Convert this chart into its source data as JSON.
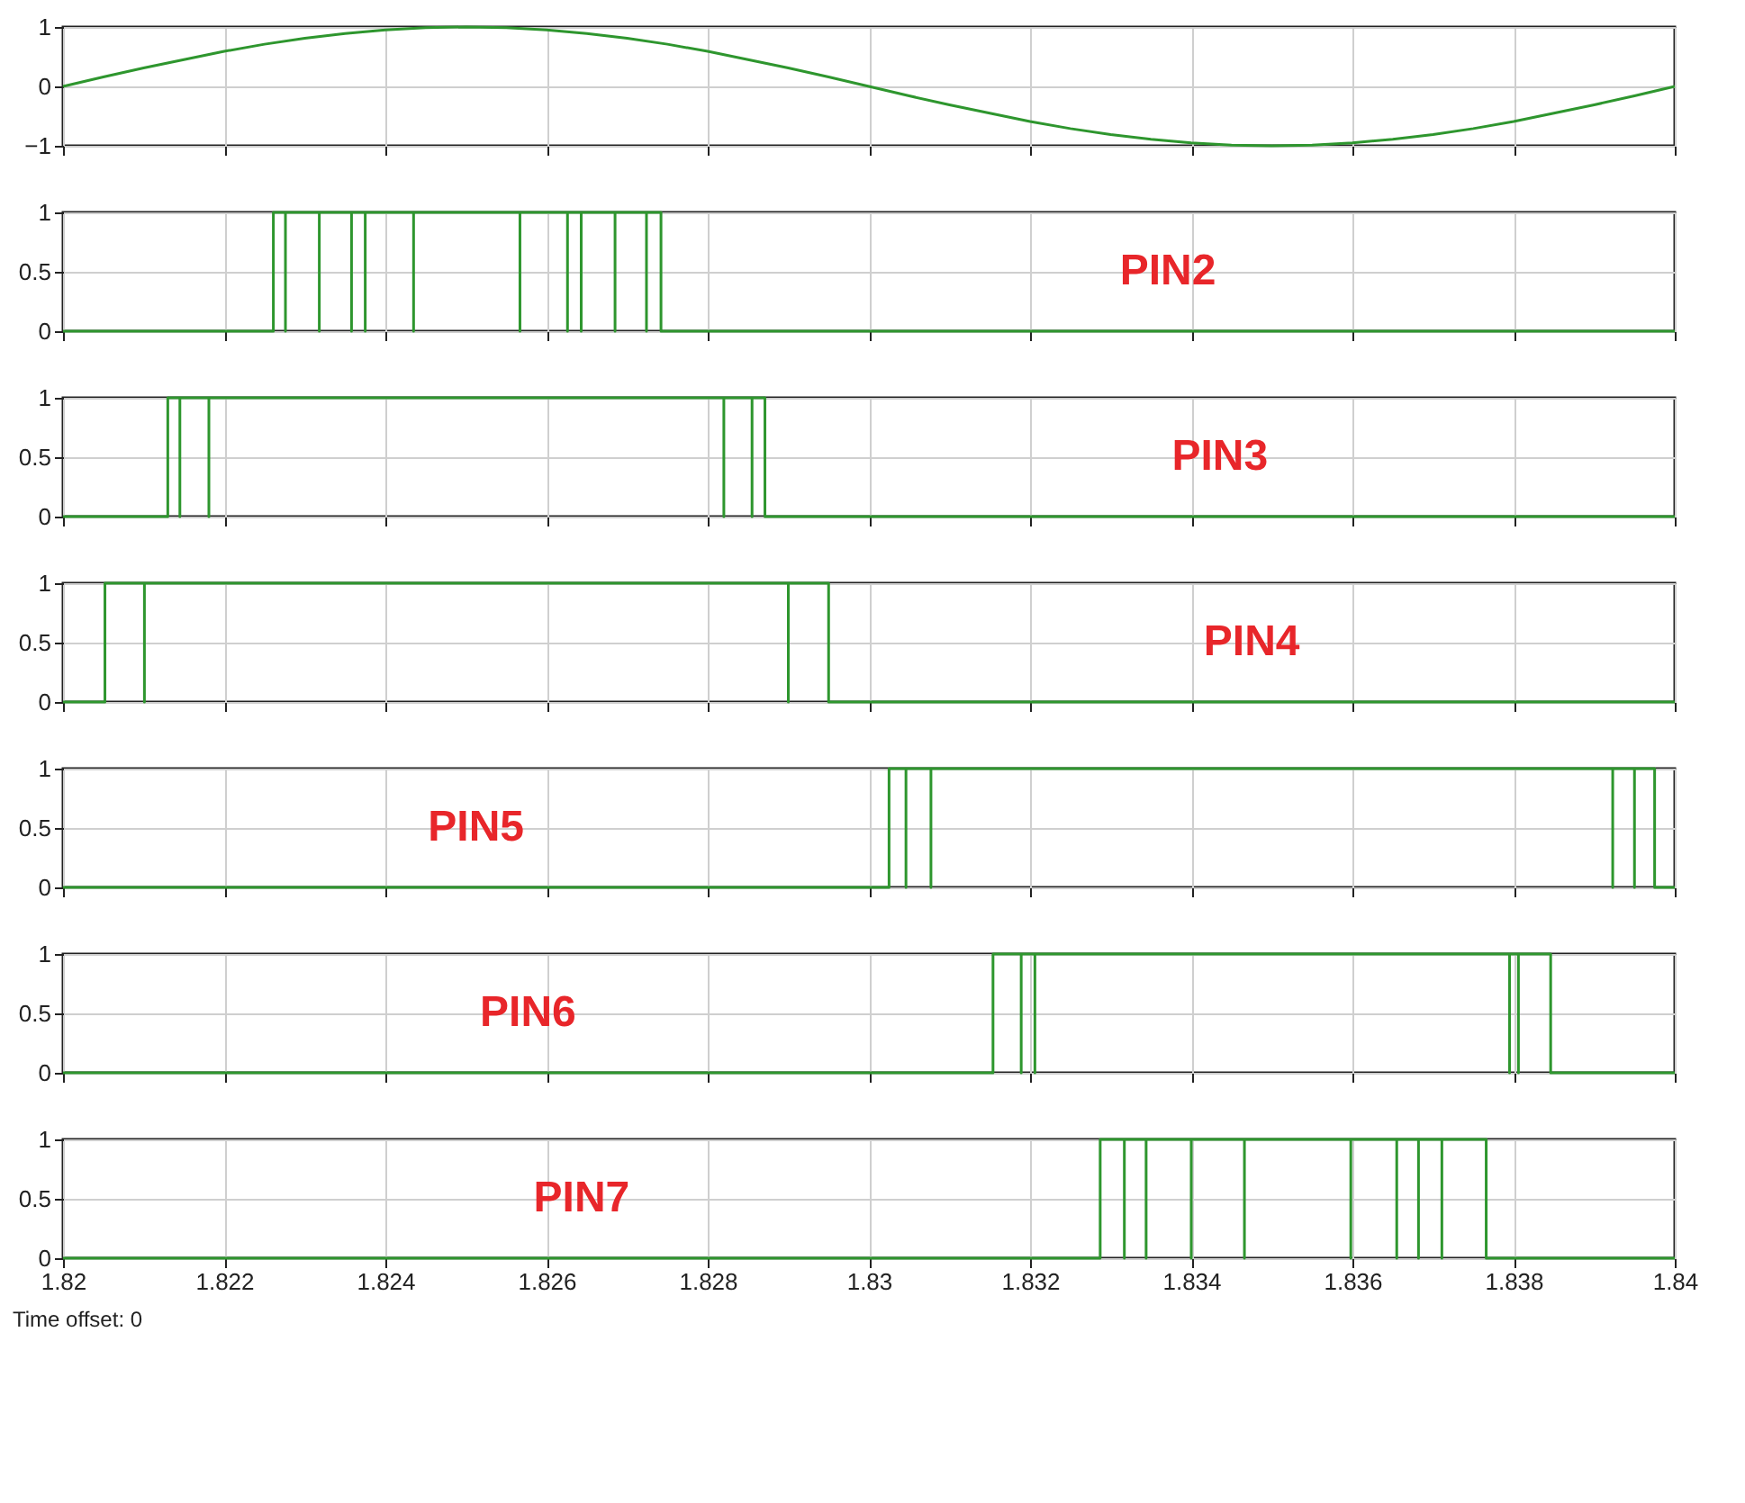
{
  "chart_data": [
    {
      "type": "line",
      "x": [
        1.82,
        1.8205,
        1.821,
        1.8215,
        1.822,
        1.8225,
        1.823,
        1.8235,
        1.824,
        1.8245,
        1.825,
        1.8255,
        1.826,
        1.8265,
        1.827,
        1.8275,
        1.828,
        1.8285,
        1.829,
        1.8295,
        1.83,
        1.8305,
        1.831,
        1.8315,
        1.832,
        1.8325,
        1.833,
        1.8335,
        1.834,
        1.8345,
        1.835,
        1.8355,
        1.836,
        1.8365,
        1.837,
        1.8375,
        1.838,
        1.8385,
        1.839,
        1.8395,
        1.84
      ],
      "series": [
        {
          "color": "#2e962e",
          "values": [
            0,
            0.16,
            0.31,
            0.45,
            0.59,
            0.71,
            0.81,
            0.89,
            0.95,
            0.99,
            1,
            0.99,
            0.95,
            0.89,
            0.81,
            0.71,
            0.59,
            0.45,
            0.31,
            0.16,
            0,
            -0.16,
            -0.31,
            -0.45,
            -0.59,
            -0.71,
            -0.81,
            -0.89,
            -0.95,
            -0.99,
            -1,
            -0.99,
            -0.95,
            -0.89,
            -0.81,
            -0.71,
            -0.59,
            -0.45,
            -0.31,
            -0.16,
            0
          ]
        }
      ],
      "xlim": [
        1.82,
        1.84
      ],
      "xticks": [
        1.82,
        1.822,
        1.824,
        1.826,
        1.828,
        1.83,
        1.832,
        1.834,
        1.836,
        1.838,
        1.84
      ],
      "ylim": [
        -1,
        1
      ],
      "yticks": [
        -1,
        0,
        1
      ],
      "grid": true,
      "tick_labels": "y"
    },
    {
      "type": "line",
      "x": [
        1.82,
        1.82261,
        1.82261,
        1.82276,
        1.82276,
        1.82276,
        1.82318,
        1.82318,
        1.82318,
        1.82358,
        1.82358,
        1.82358,
        1.82375,
        1.82375,
        1.82375,
        1.82435,
        1.82435,
        1.82435,
        1.82567,
        1.82567,
        1.82567,
        1.82626,
        1.82626,
        1.82626,
        1.82643,
        1.82643,
        1.82643,
        1.82685,
        1.82685,
        1.82685,
        1.82724,
        1.82724,
        1.82724,
        1.82742,
        1.82742,
        1.84
      ],
      "series": [
        {
          "color": "#2e962e",
          "values": [
            0,
            0,
            1,
            1,
            0,
            1,
            1,
            0,
            1,
            1,
            0,
            1,
            1,
            0,
            1,
            1,
            0,
            1,
            1,
            0,
            1,
            1,
            0,
            1,
            1,
            0,
            1,
            1,
            0,
            1,
            1,
            0,
            1,
            1,
            0,
            0
          ]
        }
      ],
      "annotations": [
        "PIN2"
      ],
      "xlim": [
        1.82,
        1.84
      ],
      "xticks": [
        1.82,
        1.822,
        1.824,
        1.826,
        1.828,
        1.83,
        1.832,
        1.834,
        1.836,
        1.838,
        1.84
      ],
      "ylim": [
        0,
        1
      ],
      "yticks": [
        0,
        0.5,
        1
      ],
      "grid": true,
      "tick_labels": "y"
    },
    {
      "type": "line",
      "x": [
        1.82,
        1.8213,
        1.8213,
        1.82145,
        1.82145,
        1.82145,
        1.82181,
        1.82181,
        1.82181,
        1.8282,
        1.8282,
        1.8282,
        1.82855,
        1.82855,
        1.82855,
        1.82871,
        1.82871,
        1.84
      ],
      "series": [
        {
          "color": "#2e962e",
          "values": [
            0,
            0,
            1,
            1,
            0,
            1,
            1,
            0,
            1,
            1,
            0,
            1,
            1,
            0,
            1,
            1,
            0,
            0
          ]
        }
      ],
      "annotations": [
        "PIN3"
      ],
      "xlim": [
        1.82,
        1.84
      ],
      "xticks": [
        1.82,
        1.822,
        1.824,
        1.826,
        1.828,
        1.83,
        1.832,
        1.834,
        1.836,
        1.838,
        1.84
      ],
      "ylim": [
        0,
        1
      ],
      "yticks": [
        0,
        0.5,
        1
      ],
      "grid": true,
      "tick_labels": "y"
    },
    {
      "type": "line",
      "x": [
        1.82,
        1.82052,
        1.82052,
        1.82101,
        1.82101,
        1.82101,
        1.829,
        1.829,
        1.829,
        1.8295,
        1.8295,
        1.84
      ],
      "series": [
        {
          "color": "#2e962e",
          "values": [
            0,
            0,
            1,
            1,
            0,
            1,
            1,
            0,
            1,
            1,
            0,
            0
          ]
        }
      ],
      "annotations": [
        "PIN4"
      ],
      "xlim": [
        1.82,
        1.84
      ],
      "xticks": [
        1.82,
        1.822,
        1.824,
        1.826,
        1.828,
        1.83,
        1.832,
        1.834,
        1.836,
        1.838,
        1.84
      ],
      "ylim": [
        0,
        1
      ],
      "yticks": [
        0,
        0.5,
        1
      ],
      "grid": true,
      "tick_labels": "y"
    },
    {
      "type": "line",
      "x": [
        1.82,
        1.83025,
        1.83025,
        1.83046,
        1.83046,
        1.83046,
        1.83077,
        1.83077,
        1.83077,
        1.83923,
        1.83923,
        1.83923,
        1.8395,
        1.8395,
        1.8395,
        1.83975,
        1.83975,
        1.84
      ],
      "series": [
        {
          "color": "#2e962e",
          "values": [
            0,
            0,
            1,
            1,
            0,
            1,
            1,
            0,
            1,
            1,
            0,
            1,
            1,
            0,
            1,
            1,
            0,
            0
          ]
        }
      ],
      "annotations": [
        "PIN5"
      ],
      "xlim": [
        1.82,
        1.84
      ],
      "xticks": [
        1.82,
        1.822,
        1.824,
        1.826,
        1.828,
        1.83,
        1.832,
        1.834,
        1.836,
        1.838,
        1.84
      ],
      "ylim": [
        0,
        1
      ],
      "yticks": [
        0,
        0.5,
        1
      ],
      "grid": true,
      "tick_labels": "y"
    },
    {
      "type": "line",
      "x": [
        1.82,
        1.83154,
        1.83154,
        1.83189,
        1.83189,
        1.83189,
        1.83206,
        1.83206,
        1.83206,
        1.83795,
        1.83795,
        1.83795,
        1.83806,
        1.83806,
        1.83806,
        1.83846,
        1.83846,
        1.84
      ],
      "series": [
        {
          "color": "#2e962e",
          "values": [
            0,
            0,
            1,
            1,
            0,
            1,
            1,
            0,
            1,
            1,
            0,
            1,
            1,
            0,
            1,
            1,
            0,
            0
          ]
        }
      ],
      "annotations": [
        "PIN6"
      ],
      "xlim": [
        1.82,
        1.84
      ],
      "xticks": [
        1.82,
        1.822,
        1.824,
        1.826,
        1.828,
        1.83,
        1.832,
        1.834,
        1.836,
        1.838,
        1.84
      ],
      "ylim": [
        0,
        1
      ],
      "yticks": [
        0,
        0.5,
        1
      ],
      "grid": true,
      "tick_labels": "y"
    },
    {
      "type": "line",
      "x": [
        1.82,
        1.83287,
        1.83287,
        1.83317,
        1.83317,
        1.83317,
        1.83344,
        1.83344,
        1.83344,
        1.834,
        1.834,
        1.834,
        1.83466,
        1.83466,
        1.83466,
        1.83598,
        1.83598,
        1.83598,
        1.83655,
        1.83655,
        1.83655,
        1.83682,
        1.83682,
        1.83682,
        1.83711,
        1.83711,
        1.83711,
        1.83766,
        1.83766,
        1.84
      ],
      "series": [
        {
          "color": "#2e962e",
          "values": [
            0,
            0,
            1,
            1,
            0,
            1,
            1,
            0,
            1,
            1,
            0,
            1,
            1,
            0,
            1,
            1,
            0,
            1,
            1,
            0,
            1,
            1,
            0,
            1,
            1,
            0,
            1,
            1,
            0,
            0
          ]
        }
      ],
      "annotations": [
        "PIN7",
        "Time offset: 0"
      ],
      "xlim": [
        1.82,
        1.84
      ],
      "xticks": [
        1.82,
        1.822,
        1.824,
        1.826,
        1.828,
        1.83,
        1.832,
        1.834,
        1.836,
        1.838,
        1.84
      ],
      "ylim": [
        0,
        1
      ],
      "yticks": [
        0,
        0.5,
        1
      ],
      "grid": true
    }
  ]
}
